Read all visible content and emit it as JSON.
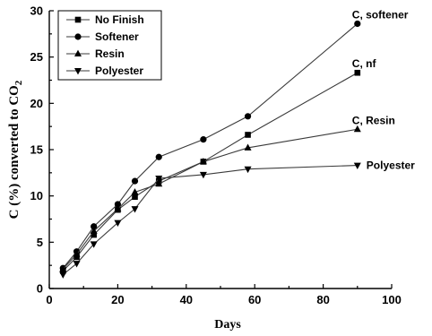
{
  "chart_data": {
    "type": "line",
    "xlabel": "Days",
    "ylabel_main": "C (%) converted to CO",
    "ylabel_sub": "2",
    "xlim": [
      0,
      100
    ],
    "ylim": [
      0,
      30
    ],
    "xticks": [
      0,
      20,
      40,
      60,
      80,
      100
    ],
    "yticks": [
      0,
      5,
      10,
      15,
      20,
      25,
      30
    ],
    "grid": false,
    "legend_position": "top-left",
    "series": [
      {
        "name": "No Finish",
        "marker": "square",
        "annotation": "C, nf",
        "x": [
          4,
          8,
          13,
          20,
          25,
          32,
          45,
          58,
          90
        ],
        "y": [
          1.9,
          3.4,
          5.8,
          8.5,
          9.9,
          11.6,
          13.7,
          16.6,
          23.3
        ]
      },
      {
        "name": "Softener",
        "marker": "circle",
        "annotation": "C, softener",
        "x": [
          4,
          8,
          13,
          20,
          25,
          32,
          45,
          58,
          90
        ],
        "y": [
          2.2,
          4.0,
          6.7,
          9.1,
          11.6,
          14.2,
          16.1,
          18.6,
          28.6
        ]
      },
      {
        "name": "Resin",
        "marker": "triangle-up",
        "annotation": "C, Resin",
        "x": [
          4,
          8,
          13,
          20,
          25,
          32,
          45,
          58,
          90
        ],
        "y": [
          2.1,
          3.7,
          6.2,
          8.6,
          10.4,
          11.3,
          13.7,
          15.2,
          17.2
        ]
      },
      {
        "name": "Polyester",
        "marker": "triangle-down",
        "annotation": "Polyester",
        "x": [
          4,
          8,
          13,
          20,
          25,
          32,
          45,
          58,
          90
        ],
        "y": [
          1.5,
          2.7,
          4.8,
          7.1,
          8.6,
          11.9,
          12.3,
          12.9,
          13.3
        ]
      }
    ]
  }
}
